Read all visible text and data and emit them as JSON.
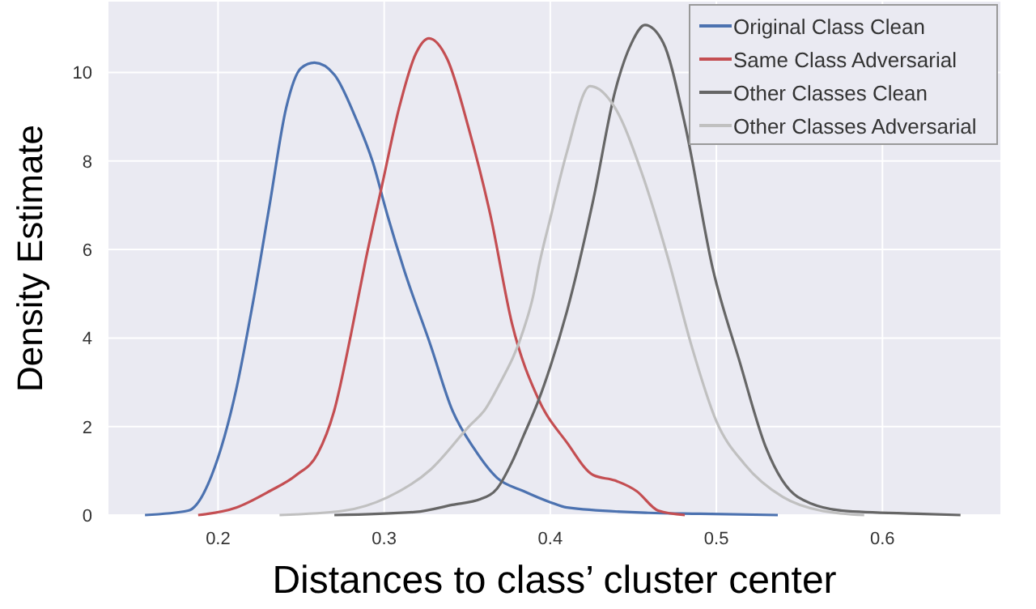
{
  "chart_data": {
    "type": "line",
    "xlabel": "Distances to class’ cluster center",
    "ylabel": "Density Estimate",
    "xlim": [
      0.134,
      0.671
    ],
    "ylim": [
      0,
      11.6
    ],
    "xticks": [
      0.2,
      0.3,
      0.4,
      0.5,
      0.6
    ],
    "yticks": [
      0,
      2,
      4,
      6,
      8,
      10
    ],
    "grid": true,
    "legend": "top right",
    "marker": "none",
    "line_style": "solid",
    "series": [
      {
        "name": "Original Class Clean",
        "color": "#4c72b0",
        "x": [
          0.156,
          0.182,
          0.2,
          0.211,
          0.221,
          0.231,
          0.241,
          0.25,
          0.258,
          0.27,
          0.283,
          0.293,
          0.302,
          0.312,
          0.328,
          0.341,
          0.354,
          0.368,
          0.384,
          0.4,
          0.41,
          0.459,
          0.49,
          0.537
        ],
        "values": [
          0,
          0.1,
          1.3,
          2.85,
          4.8,
          7.0,
          9.2,
          10.1,
          10.22,
          9.95,
          8.96,
          7.99,
          6.77,
          5.54,
          3.83,
          2.37,
          1.51,
          0.84,
          0.54,
          0.29,
          0.17,
          0.05,
          0.03,
          0
        ]
      },
      {
        "name": "Same Class Adversarial",
        "color": "#c44e52",
        "x": [
          0.188,
          0.211,
          0.231,
          0.247,
          0.26,
          0.27,
          0.28,
          0.289,
          0.299,
          0.309,
          0.319,
          0.327,
          0.338,
          0.351,
          0.364,
          0.377,
          0.393,
          0.41,
          0.426,
          0.439,
          0.452,
          0.465,
          0.481
        ],
        "values": [
          0,
          0.17,
          0.54,
          0.9,
          1.39,
          2.37,
          4.08,
          5.79,
          7.5,
          9.2,
          10.42,
          10.77,
          10.3,
          8.72,
          6.77,
          4.32,
          2.61,
          1.64,
          0.9,
          0.78,
          0.54,
          0.1,
          0
        ]
      },
      {
        "name": "Other Classes Clean",
        "color": "#666666",
        "x": [
          0.27,
          0.319,
          0.341,
          0.358,
          0.368,
          0.377,
          0.384,
          0.393,
          0.4,
          0.41,
          0.426,
          0.439,
          0.449,
          0.457,
          0.468,
          0.481,
          0.498,
          0.514,
          0.53,
          0.549,
          0.576,
          0.621,
          0.647
        ],
        "values": [
          0,
          0.07,
          0.23,
          0.36,
          0.6,
          1.2,
          1.8,
          2.6,
          3.35,
          4.6,
          7.14,
          9.57,
          10.67,
          11.07,
          10.67,
          8.84,
          5.54,
          3.47,
          1.51,
          0.41,
          0.1,
          0.03,
          0
        ]
      },
      {
        "name": "Other Classes Adversarial",
        "color": "#c0c0c0",
        "x": [
          0.237,
          0.276,
          0.302,
          0.328,
          0.351,
          0.361,
          0.368,
          0.384,
          0.39,
          0.393,
          0.4,
          0.41,
          0.424,
          0.439,
          0.455,
          0.471,
          0.485,
          0.5,
          0.517,
          0.54,
          0.563,
          0.589
        ],
        "values": [
          0,
          0.1,
          0.4,
          1.03,
          2.0,
          2.4,
          2.86,
          4.2,
          5.0,
          5.6,
          6.7,
          8.2,
          9.69,
          9.2,
          7.74,
          5.79,
          3.83,
          2.12,
          1.15,
          0.41,
          0.1,
          0
        ]
      }
    ]
  }
}
